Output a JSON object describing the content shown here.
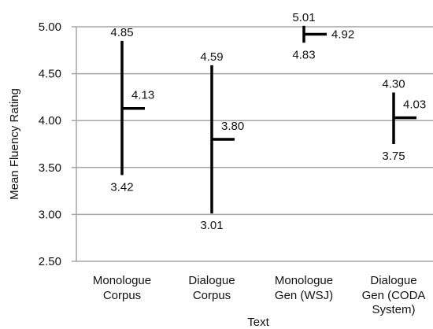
{
  "chart_data": {
    "type": "range",
    "title": "",
    "xlabel": "Text",
    "ylabel": "Mean Fluency Rating",
    "ylim": [
      2.5,
      5.0
    ],
    "yticks": [
      "2.50",
      "3.00",
      "3.50",
      "4.00",
      "4.50",
      "5.00"
    ],
    "grid": true,
    "categories": [
      {
        "line1": "Monologue",
        "line2": "Corpus",
        "line3": "",
        "high": 4.85,
        "low": 3.42,
        "mean": 4.13,
        "high_label": "4.85",
        "low_label": "3.42",
        "mean_label": "4.13"
      },
      {
        "line1": "Dialogue",
        "line2": "Corpus",
        "line3": "",
        "high": 4.59,
        "low": 3.01,
        "mean": 3.8,
        "high_label": "4.59",
        "low_label": "3.01",
        "mean_label": "3.80"
      },
      {
        "line1": "Monologue",
        "line2": "Gen (WSJ)",
        "line3": "",
        "high": 5.01,
        "low": 4.83,
        "mean": 4.92,
        "high_label": "5.01",
        "low_label": "4.83",
        "mean_label": "4.92"
      },
      {
        "line1": "Dialogue",
        "line2": "Gen (CODA",
        "line3": "System)",
        "high": 4.3,
        "low": 3.75,
        "mean": 4.03,
        "high_label": "4.30",
        "low_label": "3.75",
        "mean_label": "4.03"
      }
    ]
  }
}
